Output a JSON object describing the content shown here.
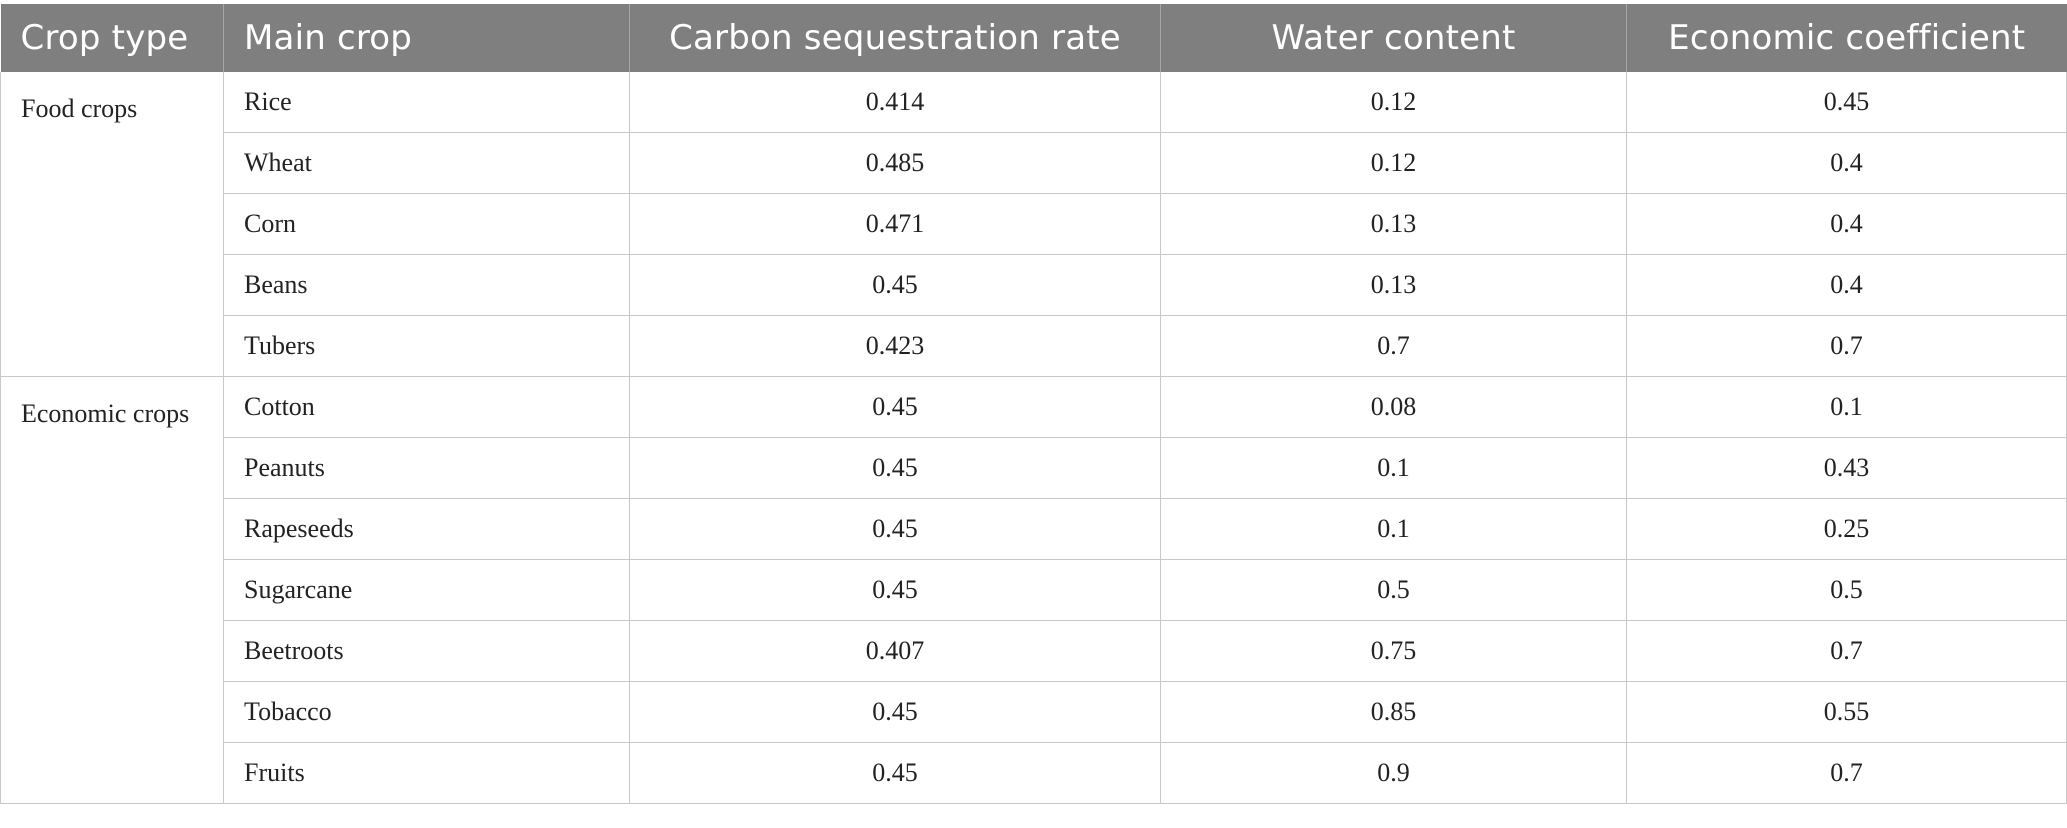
{
  "table": {
    "headers": [
      "Crop type",
      "Main crop",
      "Carbon sequestration rate",
      "Water content",
      "Economic coefficient"
    ],
    "groups": [
      {
        "type": "Food crops",
        "rows": [
          [
            "Rice",
            "0.414",
            "0.12",
            "0.45"
          ],
          [
            "Wheat",
            "0.485",
            "0.12",
            "0.4"
          ],
          [
            "Corn",
            "0.471",
            "0.13",
            "0.4"
          ],
          [
            "Beans",
            "0.45",
            "0.13",
            "0.4"
          ],
          [
            "Tubers",
            "0.423",
            "0.7",
            "0.7"
          ]
        ]
      },
      {
        "type": "Economic crops",
        "rows": [
          [
            "Cotton",
            "0.45",
            "0.08",
            "0.1"
          ],
          [
            "Peanuts",
            "0.45",
            "0.1",
            "0.43"
          ],
          [
            "Rapeseeds",
            "0.45",
            "0.1",
            "0.25"
          ],
          [
            "Sugarcane",
            "0.45",
            "0.5",
            "0.5"
          ],
          [
            "Beetroots",
            "0.407",
            "0.75",
            "0.7"
          ],
          [
            "Tobacco",
            "0.45",
            "0.85",
            "0.55"
          ],
          [
            "Fruits",
            "0.45",
            "0.9",
            "0.7"
          ]
        ]
      }
    ]
  }
}
